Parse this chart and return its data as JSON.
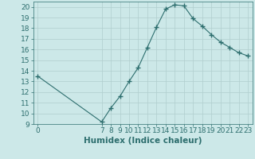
{
  "x": [
    0,
    7,
    8,
    9,
    10,
    11,
    12,
    13,
    14,
    15,
    16,
    17,
    18,
    19,
    20,
    21,
    22,
    23
  ],
  "y": [
    13.5,
    9.2,
    10.5,
    11.6,
    13.0,
    14.3,
    16.2,
    18.1,
    19.8,
    20.2,
    20.1,
    18.9,
    18.2,
    17.4,
    16.7,
    16.2,
    15.7,
    15.4
  ],
  "line_color": "#2d6e6e",
  "marker": "+",
  "marker_size": 4,
  "bg_color": "#cce8e8",
  "grid_color": "#b0cece",
  "xlabel": "Humidex (Indice chaleur)",
  "xlim": [
    -0.5,
    23.5
  ],
  "ylim": [
    9,
    20.5
  ],
  "yticks": [
    9,
    10,
    11,
    12,
    13,
    14,
    15,
    16,
    17,
    18,
    19,
    20
  ],
  "xticks": [
    0,
    7,
    8,
    9,
    10,
    11,
    12,
    13,
    14,
    15,
    16,
    17,
    18,
    19,
    20,
    21,
    22,
    23
  ],
  "tick_fontsize": 6.5,
  "xlabel_fontsize": 7.5
}
